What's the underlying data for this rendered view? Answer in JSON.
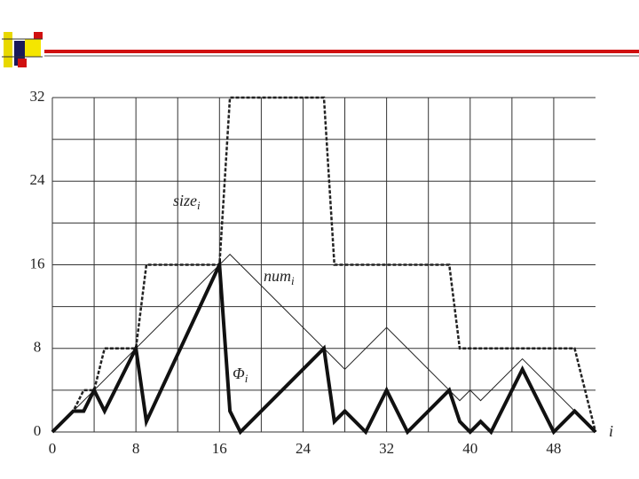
{
  "chart_data": {
    "type": "line",
    "x_label": "i",
    "xlim": [
      0,
      52
    ],
    "ylim": [
      0,
      32
    ],
    "xticks": [
      0,
      8,
      16,
      24,
      32,
      40,
      48
    ],
    "yticks": [
      0,
      8,
      16,
      24,
      32
    ],
    "grid": true,
    "series": [
      {
        "name": "size",
        "subscript": "i",
        "color": "#222",
        "dashed": true,
        "line_width": 2.5,
        "x": [
          0,
          1,
          2,
          3,
          4,
          5,
          8,
          9,
          16,
          17,
          26,
          27,
          38,
          39,
          50,
          52
        ],
        "values": [
          0,
          1,
          2,
          4,
          4,
          8,
          8,
          16,
          16,
          32,
          32,
          16,
          16,
          8,
          8,
          0
        ]
      },
      {
        "name": "num",
        "subscript": "i",
        "color": "#222",
        "dashed": false,
        "line_width": 1,
        "x": [
          0,
          17,
          28,
          32,
          39,
          40,
          41,
          45,
          52
        ],
        "values": [
          0,
          17,
          6,
          10,
          3,
          4,
          3,
          7,
          0
        ]
      },
      {
        "name": "Φ",
        "subscript": "i",
        "color": "#111",
        "dashed": false,
        "line_width": 4,
        "x": [
          0,
          2,
          3,
          4,
          5,
          8,
          9,
          16,
          17,
          18,
          26,
          27,
          28,
          30,
          32,
          34,
          38,
          39,
          40,
          41,
          42,
          45,
          48,
          50,
          52
        ],
        "values": [
          0,
          2,
          2,
          4,
          2,
          8,
          1,
          16,
          2,
          0,
          8,
          1,
          2,
          0,
          4,
          0,
          4,
          1,
          0,
          1,
          0,
          6,
          0,
          2,
          0
        ]
      }
    ]
  }
}
